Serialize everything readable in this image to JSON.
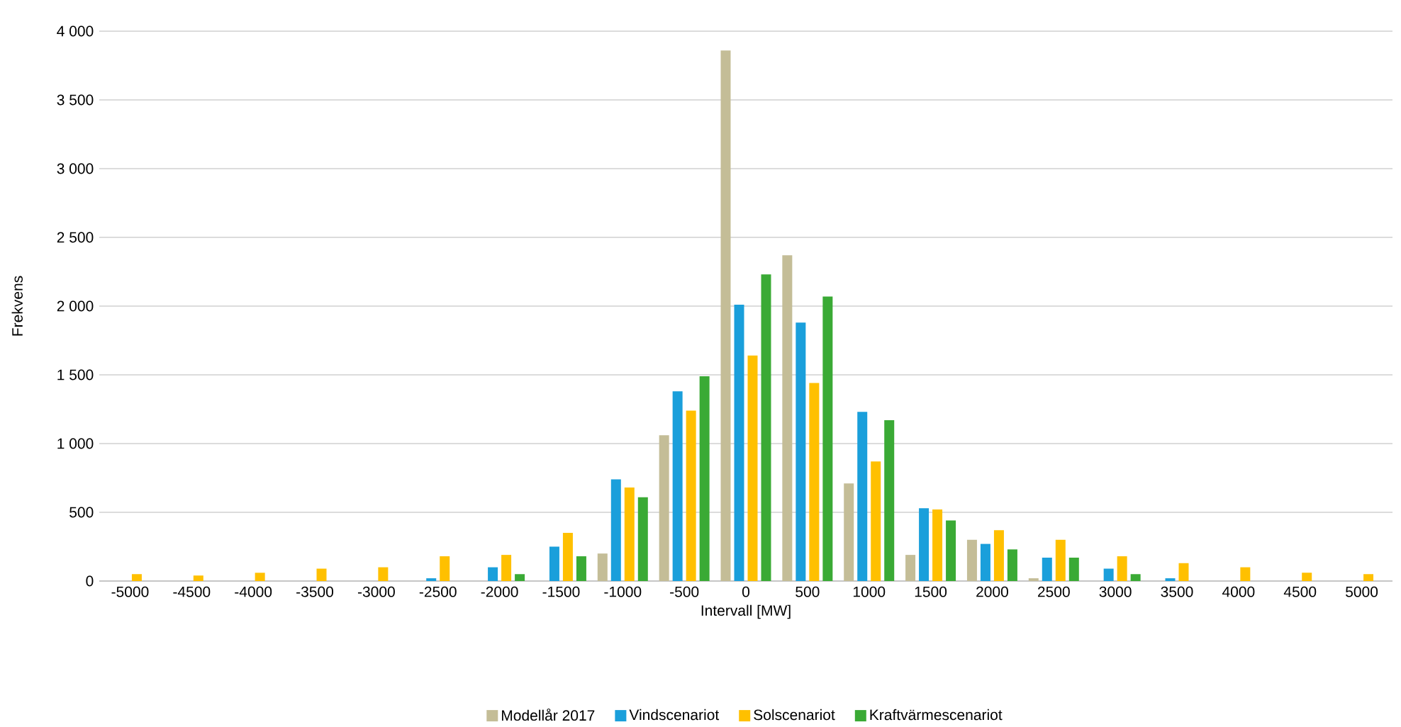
{
  "chart_data": {
    "type": "bar",
    "xlabel": "Intervall [MW]",
    "ylabel": "Frekvens",
    "categories": [
      "-5000",
      "-4500",
      "-4000",
      "-3500",
      "-3000",
      "-2500",
      "-2000",
      "-1500",
      "-1000",
      "-500",
      "0",
      "500",
      "1000",
      "1500",
      "2000",
      "2500",
      "3000",
      "3500",
      "4000",
      "4500",
      "5000"
    ],
    "series": [
      {
        "name": "Modellår 2017",
        "color": "#c4bd97",
        "values": [
          0,
          0,
          0,
          0,
          0,
          0,
          0,
          0,
          200,
          1060,
          3860,
          2370,
          710,
          190,
          300,
          20,
          0,
          0,
          0,
          0,
          0
        ]
      },
      {
        "name": "Vindscenariot",
        "color": "#1a9fdb",
        "values": [
          0,
          0,
          0,
          0,
          0,
          20,
          100,
          250,
          740,
          1380,
          2010,
          1880,
          1230,
          530,
          270,
          170,
          90,
          20,
          0,
          0,
          0
        ]
      },
      {
        "name": "Solscenariot",
        "color": "#ffc000",
        "values": [
          50,
          40,
          60,
          90,
          100,
          180,
          190,
          350,
          680,
          1240,
          1640,
          1440,
          870,
          520,
          370,
          300,
          180,
          130,
          100,
          60,
          50
        ]
      },
      {
        "name": "Kraftvärmescenariot",
        "color": "#3aaa35",
        "values": [
          0,
          0,
          0,
          0,
          0,
          0,
          50,
          180,
          610,
          1490,
          2230,
          2070,
          1170,
          440,
          230,
          170,
          50,
          0,
          0,
          0,
          0
        ]
      }
    ],
    "ylim": [
      0,
      4000
    ],
    "yticks": [
      {
        "value": 0,
        "label": "0"
      },
      {
        "value": 500,
        "label": "500"
      },
      {
        "value": 1000,
        "label": "1 000"
      },
      {
        "value": 1500,
        "label": "1 500"
      },
      {
        "value": 2000,
        "label": "2 000"
      },
      {
        "value": 2500,
        "label": "2 500"
      },
      {
        "value": 3000,
        "label": "3 000"
      },
      {
        "value": 3500,
        "label": "3 500"
      },
      {
        "value": 4000,
        "label": "4 000"
      }
    ],
    "grid": "y",
    "legend": "bottom"
  }
}
